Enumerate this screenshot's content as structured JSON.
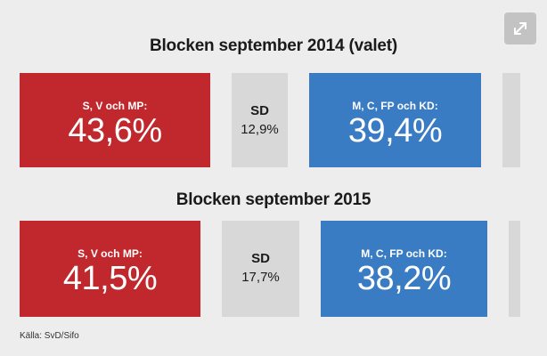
{
  "expand_icon": "expand-arrows-icon",
  "chart_data": [
    {
      "type": "bar",
      "title": "Blocken september 2014 (valet)",
      "categories": [
        "S, V och MP:",
        "SD",
        "M, C, FP och KD:",
        ""
      ],
      "values": [
        43.6,
        12.9,
        39.4,
        4.1
      ],
      "value_labels": [
        "43,6%",
        "12,9%",
        "39,4%",
        ""
      ],
      "colors": [
        "#c0282d",
        "#d8d8d8",
        "#3a7cc3",
        "#d8d8d8"
      ]
    },
    {
      "type": "bar",
      "title": "Blocken september 2015",
      "categories": [
        "S, V och MP:",
        "SD",
        "M, C, FP och KD:",
        ""
      ],
      "values": [
        41.5,
        17.7,
        38.2,
        2.6
      ],
      "value_labels": [
        "41,5%",
        "17,7%",
        "38,2%",
        ""
      ],
      "colors": [
        "#c0282d",
        "#d8d8d8",
        "#3a7cc3",
        "#d8d8d8"
      ]
    }
  ],
  "source": "Källa: SvD/Sifo"
}
